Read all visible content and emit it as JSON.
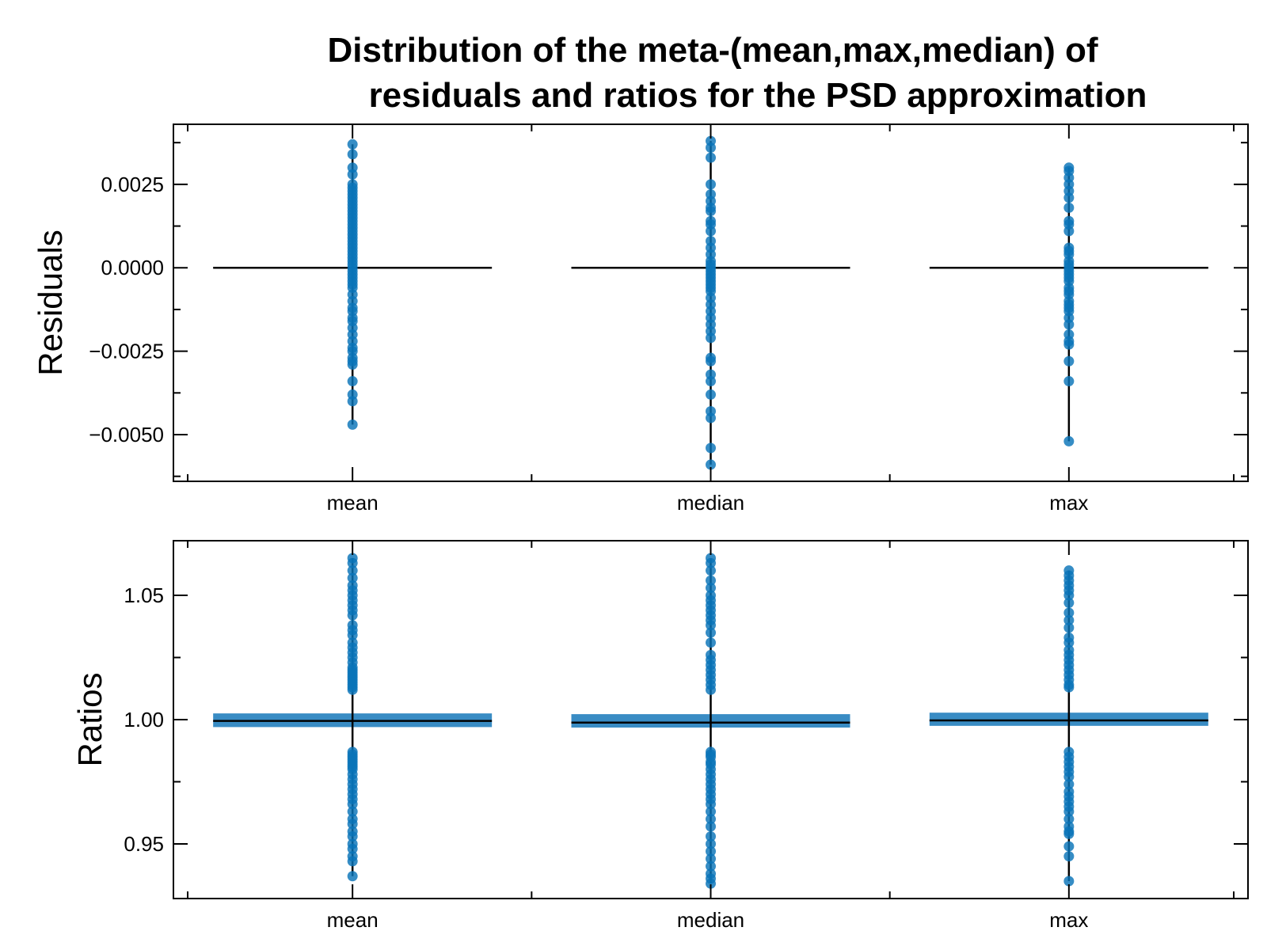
{
  "title_line1": "Distribution of the meta-(mean,max,median) of",
  "title_line2": "residuals and ratios for the PSD approximation",
  "colors": {
    "points": "#0a74b8",
    "box": "#2e86c1",
    "median": "#000000",
    "axes": "#000000"
  },
  "chart_data": [
    {
      "type": "scatter",
      "ylabel": "Residuals",
      "ylim": [
        -0.0064,
        0.0043
      ],
      "yticks": [
        -0.005,
        -0.0025,
        0.0,
        0.0025
      ],
      "ytick_labels": [
        "−0.0050",
        "−0.0025",
        "0.0000",
        "0.0025"
      ],
      "categories": [
        "mean",
        "median",
        "max"
      ],
      "medians": [
        0.0,
        0.0,
        0.0
      ],
      "series": [
        {
          "category": "mean",
          "values": [
            0.0037,
            0.0034,
            0.003,
            0.0028,
            0.0025,
            0.0024,
            0.0023,
            0.0022,
            0.0021,
            0.002,
            0.0019,
            0.0018,
            0.0017,
            0.0016,
            0.0015,
            0.0014,
            0.0013,
            0.0012,
            0.0011,
            0.001,
            0.0009,
            0.0008,
            0.0007,
            0.0006,
            0.0005,
            0.0004,
            0.0003,
            0.0002,
            0.0001,
            0.0,
            -0.0001,
            -0.0002,
            -0.0003,
            -0.0004,
            -0.0005,
            -0.0006,
            -0.0008,
            -0.001,
            -0.0012,
            -0.0013,
            -0.0015,
            -0.0016,
            -0.0018,
            -0.002,
            -0.0022,
            -0.0024,
            -0.0025,
            -0.0027,
            -0.0028,
            -0.0029,
            -0.0034,
            -0.0038,
            -0.004,
            -0.0047
          ]
        },
        {
          "category": "median",
          "values": [
            0.0038,
            0.0036,
            0.0033,
            0.0025,
            0.0022,
            0.002,
            0.0018,
            0.0017,
            0.0014,
            0.0013,
            0.0011,
            0.0008,
            0.0006,
            0.0004,
            0.0002,
            0.0001,
            0.0,
            -0.0001,
            -0.0002,
            -0.0003,
            -0.0004,
            -0.0005,
            -0.0006,
            -0.0007,
            -0.0009,
            -0.0011,
            -0.0013,
            -0.0015,
            -0.0017,
            -0.0019,
            -0.0021,
            -0.0027,
            -0.0028,
            -0.0032,
            -0.0034,
            -0.0038,
            -0.0043,
            -0.0045,
            -0.0054,
            -0.0059
          ]
        },
        {
          "category": "max",
          "values": [
            0.003,
            0.0029,
            0.0027,
            0.0025,
            0.0023,
            0.0021,
            0.0018,
            0.0014,
            0.0013,
            0.0011,
            0.0006,
            0.0005,
            0.0004,
            0.0002,
            0.0001,
            0.0,
            -0.0001,
            -0.0002,
            -0.0003,
            -0.0004,
            -0.0006,
            -0.0007,
            -0.0008,
            -0.001,
            -0.0011,
            -0.0012,
            -0.0013,
            -0.0015,
            -0.0017,
            -0.002,
            -0.0022,
            -0.0023,
            -0.0028,
            -0.0034,
            -0.0052
          ]
        }
      ]
    },
    {
      "type": "scatter",
      "ylabel": "Ratios",
      "ylim": [
        0.928,
        1.072
      ],
      "yticks": [
        0.95,
        1.0,
        1.05
      ],
      "ytick_labels": [
        "0.95",
        "1.00",
        "1.05"
      ],
      "categories": [
        "mean",
        "median",
        "max"
      ],
      "medians": [
        0.9995,
        0.9988,
        0.9997
      ],
      "boxes": [
        [
          0.997,
          1.0025
        ],
        [
          0.9968,
          1.0022
        ],
        [
          0.9975,
          1.0028
        ]
      ],
      "series": [
        {
          "category": "mean",
          "values": [
            1.065,
            1.063,
            1.06,
            1.057,
            1.054,
            1.052,
            1.05,
            1.048,
            1.046,
            1.044,
            1.042,
            1.038,
            1.036,
            1.034,
            1.031,
            1.029,
            1.027,
            1.025,
            1.023,
            1.021,
            1.02,
            1.019,
            1.018,
            1.017,
            1.016,
            1.015,
            1.014,
            1.013,
            1.012,
            0.987,
            0.986,
            0.985,
            0.984,
            0.983,
            0.982,
            0.981,
            0.98,
            0.978,
            0.976,
            0.974,
            0.972,
            0.97,
            0.968,
            0.966,
            0.963,
            0.96,
            0.958,
            0.955,
            0.953,
            0.95,
            0.948,
            0.945,
            0.943,
            0.937
          ]
        },
        {
          "category": "median",
          "values": [
            1.065,
            1.063,
            1.06,
            1.056,
            1.053,
            1.05,
            1.048,
            1.046,
            1.044,
            1.042,
            1.04,
            1.038,
            1.035,
            1.031,
            1.026,
            1.024,
            1.022,
            1.02,
            1.018,
            1.016,
            1.014,
            1.012,
            0.987,
            0.986,
            0.985,
            0.983,
            0.982,
            0.98,
            0.978,
            0.976,
            0.974,
            0.972,
            0.97,
            0.968,
            0.966,
            0.963,
            0.96,
            0.957,
            0.953,
            0.95,
            0.947,
            0.944,
            0.941,
            0.938,
            0.936,
            0.934
          ]
        },
        {
          "category": "max",
          "values": [
            1.06,
            1.058,
            1.056,
            1.054,
            1.052,
            1.05,
            1.047,
            1.043,
            1.04,
            1.037,
            1.033,
            1.031,
            1.028,
            1.026,
            1.024,
            1.022,
            1.02,
            1.018,
            1.016,
            1.014,
            1.013,
            0.987,
            0.985,
            0.983,
            0.981,
            0.979,
            0.977,
            0.974,
            0.971,
            0.969,
            0.967,
            0.965,
            0.963,
            0.96,
            0.957,
            0.955,
            0.954,
            0.949,
            0.945,
            0.935
          ]
        }
      ]
    }
  ]
}
